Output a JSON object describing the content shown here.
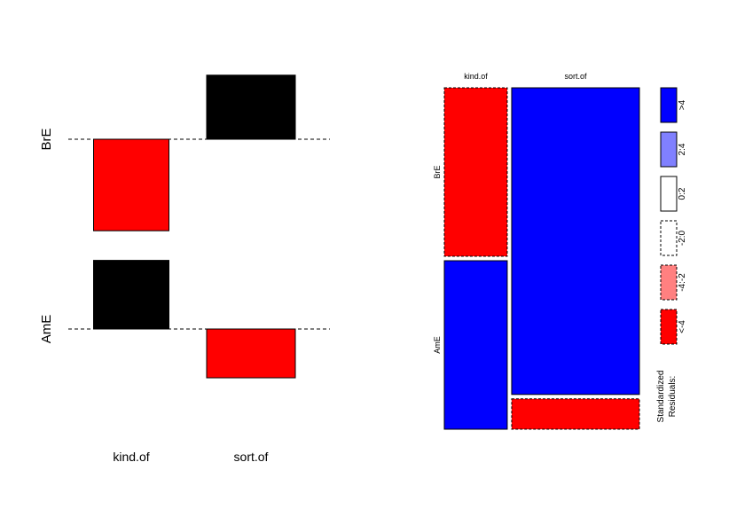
{
  "chart_data": [
    {
      "type": "bar",
      "subtype": "association-plot",
      "rows": [
        "BrE",
        "AmE"
      ],
      "categories": [
        "kind.of",
        "sort.of"
      ],
      "series": [
        {
          "name": "BrE",
          "values": [
            -0.6,
            0.42
          ]
        },
        {
          "name": "AmE",
          "values": [
            0.45,
            -0.32
          ]
        }
      ],
      "bar_widths": [
        0.85,
        1.0
      ],
      "colors": {
        "positive": "#000000",
        "negative": "#ff0000"
      },
      "baseline_style": "dashed"
    },
    {
      "type": "mosaic",
      "column_labels": [
        "kind.of",
        "sort.of"
      ],
      "row_labels": [
        "BrE",
        "AmE"
      ],
      "column_proportions": [
        0.33,
        0.67
      ],
      "cells": [
        {
          "col": "kind.of",
          "row": "BrE",
          "proportion": 0.5,
          "residual_bin": "<-4"
        },
        {
          "col": "kind.of",
          "row": "AmE",
          "proportion": 0.5,
          "residual_bin": ">4"
        },
        {
          "col": "sort.of",
          "row": "BrE",
          "proportion": 0.91,
          "residual_bin": ">4"
        },
        {
          "col": "sort.of",
          "row": "AmE",
          "proportion": 0.09,
          "residual_bin": "<-4"
        }
      ],
      "legend": {
        "title_line1": "Standardized",
        "title_line2": "Residuals:",
        "placement": "right",
        "items": [
          {
            "label": ">4",
            "color": "#0000ff",
            "border": "solid"
          },
          {
            "label": "2:4",
            "color": "#8080ff",
            "border": "solid"
          },
          {
            "label": "0:2",
            "color": "#ffffff",
            "border": "solid"
          },
          {
            "label": "-2:0",
            "color": "#ffffff",
            "border": "dashed"
          },
          {
            "label": "-4:-2",
            "color": "#ff8080",
            "border": "dashed"
          },
          {
            "label": "<-4",
            "color": "#ff0000",
            "border": "dashed"
          }
        ]
      }
    }
  ]
}
